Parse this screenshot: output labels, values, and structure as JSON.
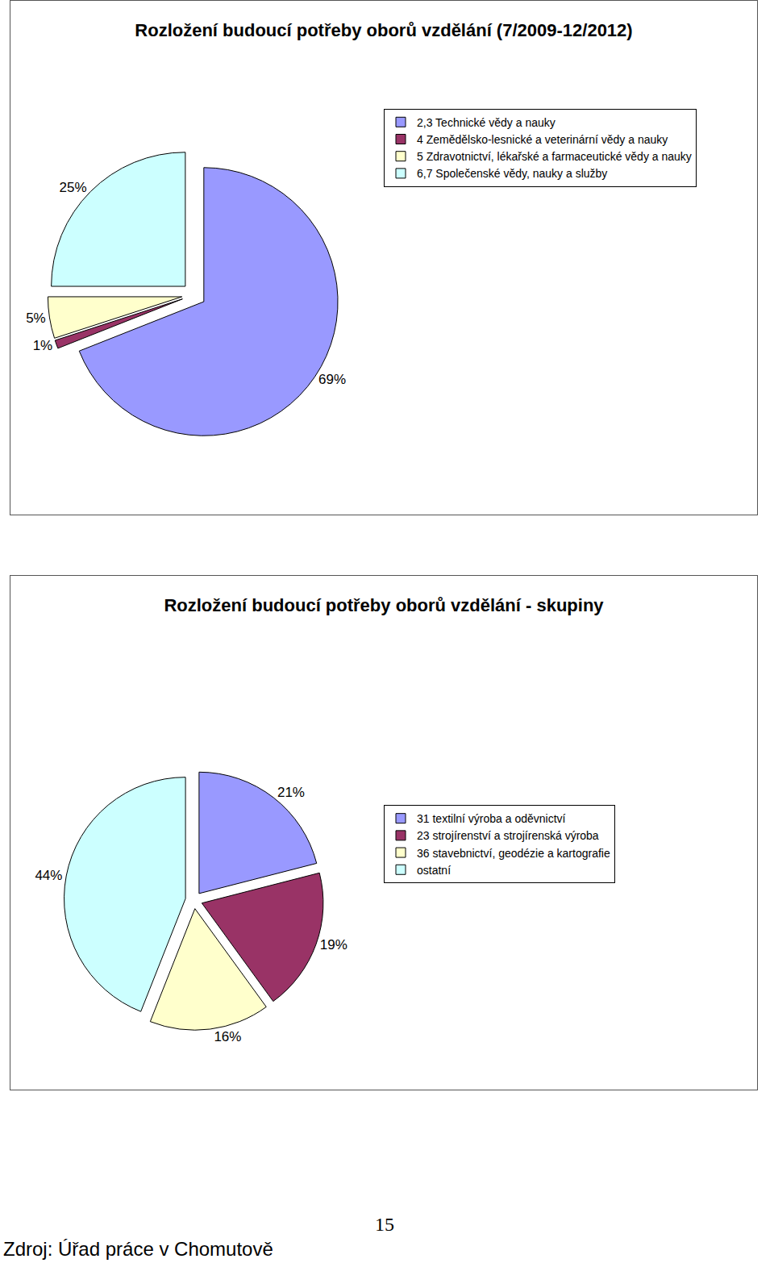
{
  "chart_data": [
    {
      "type": "pie",
      "title": "Rozložení budoucí potřeby oborů vzdělání (7/2009-12/2012)",
      "categories": [
        "2,3 Technické vědy a nauky",
        "4 Zemědělsko-lesnické a veterinární vědy a nauky",
        "5 Zdravotnictví, lékařské a farmaceutické vědy a nauky",
        "6,7 Společenské vědy, nauky a služby"
      ],
      "values": [
        69,
        1,
        5,
        25
      ],
      "value_labels": [
        "69%",
        "1%",
        "5%",
        "25%"
      ],
      "colors": [
        "#9999ff",
        "#993366",
        "#ffffcc",
        "#ccffff"
      ],
      "data_labels": true,
      "legend": "right"
    },
    {
      "type": "pie",
      "title": "Rozložení budoucí potřeby oborů vzdělání - skupiny",
      "categories": [
        "31 textilní výroba a oděvnictví",
        "23 strojírenství a strojírenská výroba",
        "36 stavebnictví, geodézie a kartografie",
        "ostatní"
      ],
      "values": [
        21,
        19,
        16,
        44
      ],
      "value_labels": [
        "21%",
        "19%",
        "16%",
        "44%"
      ],
      "colors": [
        "#9999ff",
        "#993366",
        "#ffffcc",
        "#ccffff"
      ],
      "data_labels": true,
      "legend": "right"
    }
  ],
  "page": {
    "number": 15,
    "source": "Zdroj: Úřad práce v Chomutově"
  }
}
